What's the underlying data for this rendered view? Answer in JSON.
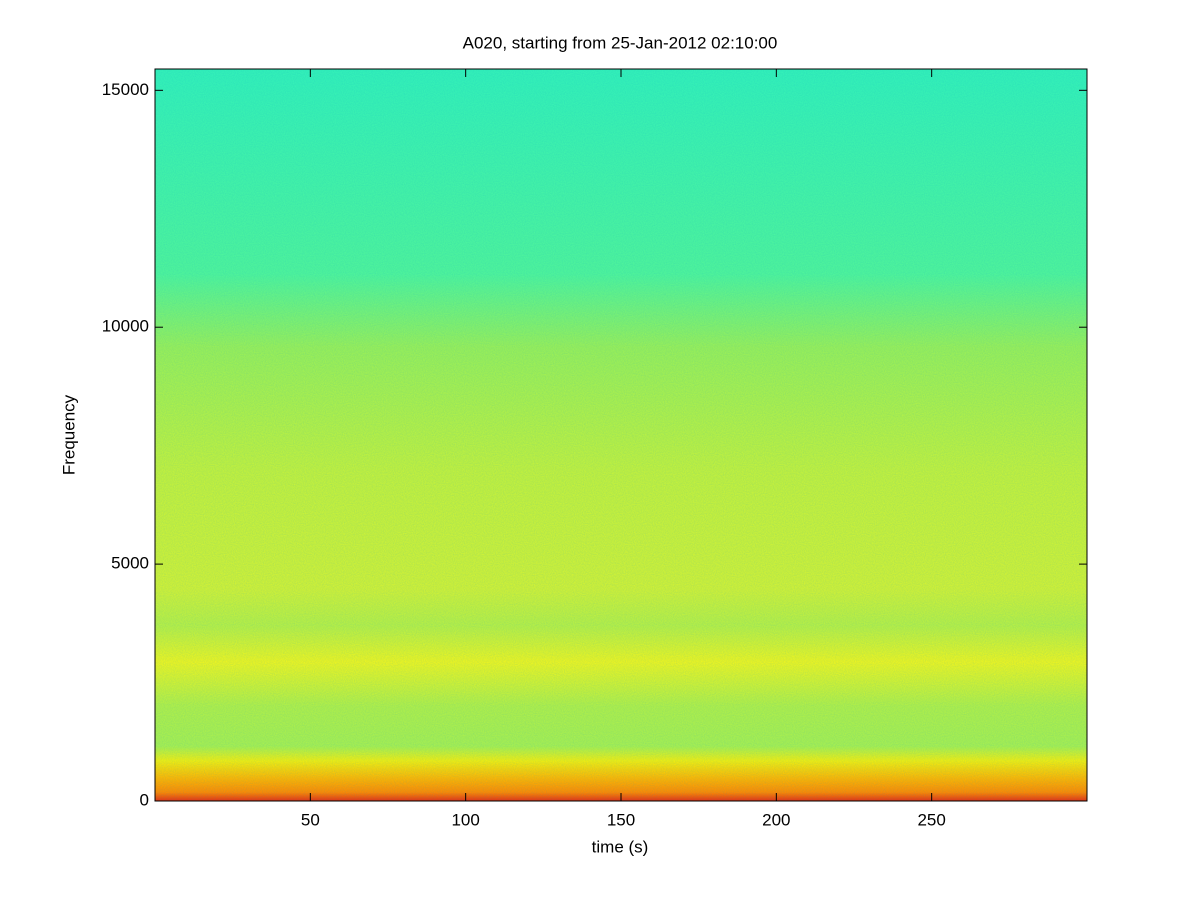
{
  "chart_data": {
    "type": "spectrogram",
    "title": "A020, starting from 25-Jan-2012 02:10:00",
    "xlabel": "time (s)",
    "ylabel": "Frequency",
    "xlim": [
      0,
      300
    ],
    "xticks": [
      50,
      100,
      150,
      200,
      250
    ],
    "ylim": [
      0,
      15450
    ],
    "yticks": [
      0,
      5000,
      10000,
      15000
    ],
    "colormap": "jet"
  }
}
